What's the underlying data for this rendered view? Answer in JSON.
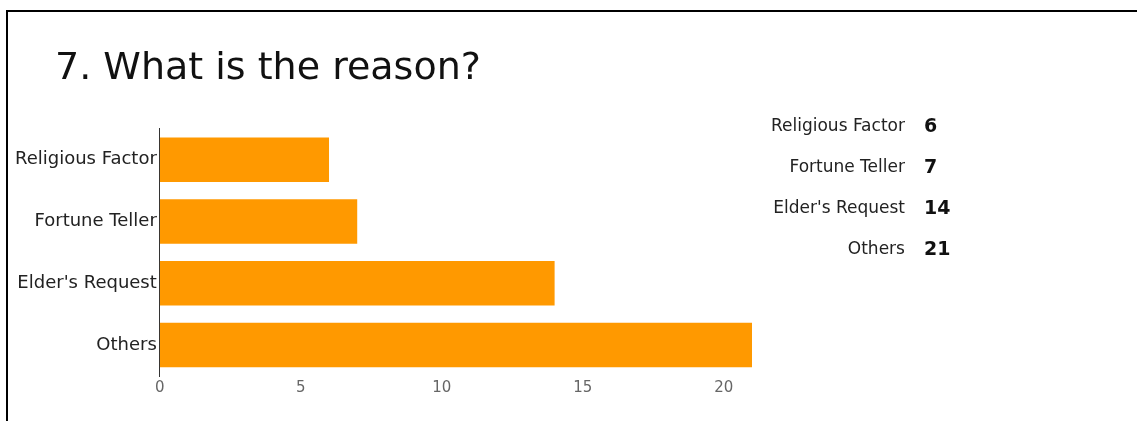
{
  "chart_data": [
    {
      "type": "bar",
      "orientation": "horizontal",
      "title": "7. What is the reason?",
      "categories": [
        "Religious Factor",
        "Fortune Teller",
        "Elder's Request",
        "Others"
      ],
      "values": [
        6,
        7,
        14,
        21
      ],
      "color": "#ff9900",
      "xlim": [
        0,
        21
      ],
      "xticks": [
        0,
        5,
        10,
        15,
        20
      ],
      "grid": false,
      "legend": false
    },
    {
      "type": "other",
      "annotations": [
        "Religious Factor",
        "6",
        "Fortune Teller",
        "7",
        "Elder's Request",
        "14",
        "Others",
        "21"
      ]
    }
  ]
}
